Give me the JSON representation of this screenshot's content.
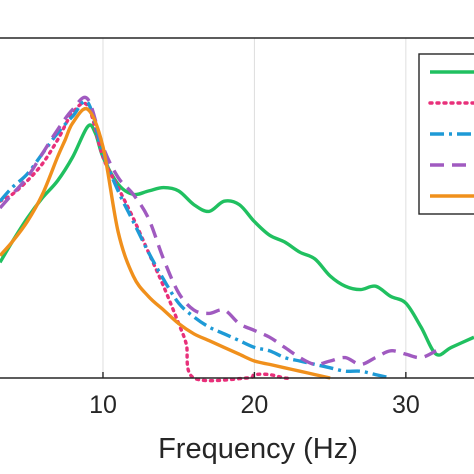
{
  "chart_data": {
    "type": "line",
    "xlabel": "Frequency (Hz)",
    "ylabel": "",
    "xlim": [
      3.2,
      34.5
    ],
    "ylim": [
      0,
      1.0
    ],
    "xticks": [
      10,
      20,
      30
    ],
    "xtick_labels": [
      "10",
      "20",
      "30"
    ],
    "grid": true,
    "legend_position": "top-right",
    "series": [
      {
        "color": "#20c060",
        "dash": "solid",
        "x": [
          3.2,
          4,
          5,
          6,
          7,
          8,
          9,
          9.5,
          10,
          11,
          12,
          13,
          14,
          15,
          16,
          17,
          18,
          19,
          20,
          21,
          22,
          23,
          24,
          25,
          26,
          27,
          28,
          29,
          30,
          31,
          32,
          33,
          34.5
        ],
        "y": [
          0.34,
          0.4,
          0.47,
          0.53,
          0.58,
          0.65,
          0.74,
          0.72,
          0.65,
          0.57,
          0.54,
          0.55,
          0.56,
          0.55,
          0.51,
          0.49,
          0.52,
          0.51,
          0.46,
          0.42,
          0.4,
          0.37,
          0.35,
          0.3,
          0.27,
          0.26,
          0.27,
          0.24,
          0.22,
          0.15,
          0.07,
          0.09,
          0.12
        ]
      },
      {
        "color": "#e8307a",
        "dash": "dot",
        "x": [
          3.2,
          4,
          5,
          6,
          7,
          8,
          9,
          10,
          11,
          12,
          13,
          14,
          15,
          15.5,
          16,
          19.5,
          20,
          21,
          22,
          22.5
        ],
        "y": [
          0.52,
          0.54,
          0.58,
          0.63,
          0.7,
          0.78,
          0.8,
          0.65,
          0.56,
          0.47,
          0.37,
          0.27,
          0.16,
          0.1,
          0.0,
          0.0,
          0.01,
          0.01,
          0.0,
          0.0
        ]
      },
      {
        "color": "#1e9ad6",
        "dash": "dashdot",
        "x": [
          3.2,
          4,
          5,
          6,
          7,
          8,
          9,
          10,
          11,
          12,
          13,
          14,
          15,
          16,
          17,
          18,
          19,
          20,
          21,
          22,
          23,
          24,
          25,
          26,
          27,
          28,
          29
        ],
        "y": [
          0.52,
          0.56,
          0.6,
          0.66,
          0.72,
          0.77,
          0.81,
          0.66,
          0.55,
          0.46,
          0.37,
          0.29,
          0.22,
          0.18,
          0.15,
          0.13,
          0.11,
          0.09,
          0.08,
          0.06,
          0.05,
          0.04,
          0.03,
          0.02,
          0.02,
          0.01,
          0.0
        ]
      },
      {
        "color": "#a05ac0",
        "dash": "dash",
        "x": [
          3.2,
          4,
          5,
          6,
          7,
          8,
          9,
          10,
          11,
          12,
          13,
          14,
          15,
          16,
          17,
          18,
          19,
          20,
          21,
          22,
          23,
          24,
          25,
          26,
          27,
          28,
          29,
          30,
          31,
          32
        ],
        "y": [
          0.5,
          0.54,
          0.59,
          0.66,
          0.73,
          0.79,
          0.82,
          0.68,
          0.59,
          0.54,
          0.47,
          0.35,
          0.25,
          0.2,
          0.19,
          0.2,
          0.16,
          0.14,
          0.12,
          0.09,
          0.06,
          0.04,
          0.05,
          0.06,
          0.04,
          0.06,
          0.08,
          0.07,
          0.06,
          0.08
        ]
      },
      {
        "color": "#f0901c",
        "dash": "solid",
        "x": [
          3.2,
          4,
          5,
          6,
          7,
          7.5,
          8,
          9,
          10,
          11,
          12,
          13,
          14,
          15,
          16,
          17,
          18,
          19,
          20,
          21,
          22,
          23,
          24,
          25
        ],
        "y": [
          0.36,
          0.4,
          0.46,
          0.54,
          0.65,
          0.7,
          0.75,
          0.79,
          0.68,
          0.43,
          0.3,
          0.24,
          0.2,
          0.16,
          0.13,
          0.11,
          0.09,
          0.07,
          0.05,
          0.04,
          0.03,
          0.02,
          0.01,
          0.0
        ]
      }
    ]
  }
}
